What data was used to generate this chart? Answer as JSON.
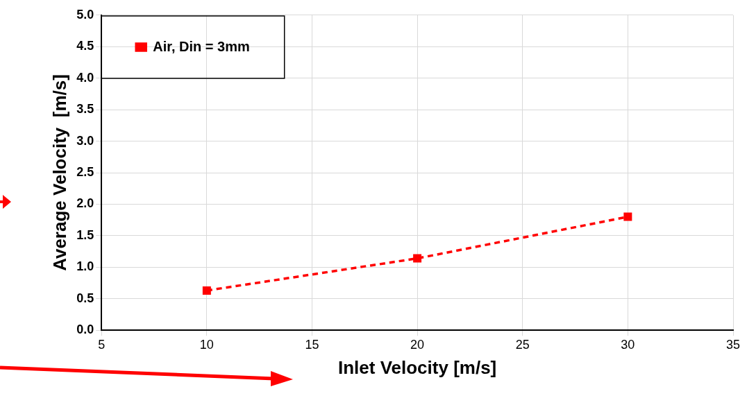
{
  "chart_data": {
    "type": "line",
    "xlabel": "Inlet Velocity [m/s]",
    "ylabel": "Average Velocity  [m/s]",
    "x": [
      10,
      20,
      30
    ],
    "series": [
      {
        "name": "Air, Din = 3mm",
        "color": "#ff0000",
        "values": [
          0.63,
          1.14,
          1.8
        ]
      }
    ],
    "xlim": [
      5,
      35
    ],
    "xticks": [
      5,
      10,
      15,
      20,
      25,
      30,
      35
    ],
    "ylim": [
      0,
      5
    ],
    "yticks": [
      {
        "value": 0,
        "label": "0.0"
      },
      {
        "value": 0.5,
        "label": "0.5"
      },
      {
        "value": 1,
        "label": "1.0"
      },
      {
        "value": 1.5,
        "label": "1.5"
      },
      {
        "value": 2,
        "label": "2.0"
      },
      {
        "value": 2.5,
        "label": "2.5"
      },
      {
        "value": 3,
        "label": "3.0"
      },
      {
        "value": 3.5,
        "label": "3.5"
      },
      {
        "value": 4,
        "label": "4.0"
      },
      {
        "value": 4.5,
        "label": "4.5"
      },
      {
        "value": 5,
        "label": "5.0"
      }
    ],
    "grid": true,
    "legend": "top left",
    "marker": "square",
    "line_style": "dashed"
  }
}
